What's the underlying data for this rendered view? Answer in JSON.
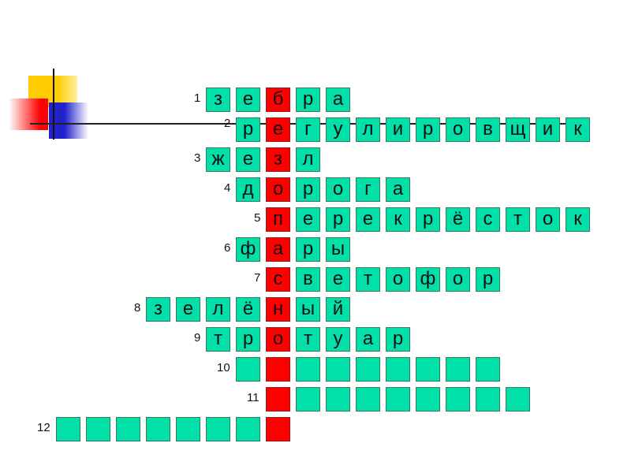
{
  "colors": {
    "cell": "#00e0a8",
    "key_cell": "#ff0000"
  },
  "rows": [
    {
      "number": "1",
      "start": -2,
      "length": 5,
      "letters": [
        "з",
        "е",
        "б",
        "р",
        "а"
      ]
    },
    {
      "number": "2",
      "start": -1,
      "length": 12,
      "letters": [
        "р",
        "е",
        "г",
        "у",
        "л",
        "и",
        "р",
        "о",
        "в",
        "щ",
        "и",
        "к"
      ]
    },
    {
      "number": "3",
      "start": -2,
      "length": 4,
      "letters": [
        "ж",
        "е",
        "з",
        "л"
      ]
    },
    {
      "number": "4",
      "start": -1,
      "length": 6,
      "letters": [
        "д",
        "о",
        "р",
        "о",
        "г",
        "а"
      ]
    },
    {
      "number": "5",
      "start": 0,
      "length": 11,
      "letters": [
        "п",
        "е",
        "р",
        "е",
        "к",
        "р",
        "ё",
        "с",
        "т",
        "о",
        "к"
      ]
    },
    {
      "number": "6",
      "start": -1,
      "length": 4,
      "letters": [
        "ф",
        "а",
        "р",
        "ы"
      ]
    },
    {
      "number": "7",
      "start": 0,
      "length": 8,
      "letters": [
        "с",
        "в",
        "е",
        "т",
        "о",
        "ф",
        "о",
        "р"
      ]
    },
    {
      "number": "8",
      "start": -4,
      "length": 7,
      "letters": [
        "з",
        "е",
        "л",
        "ё",
        "н",
        "ы",
        "й"
      ]
    },
    {
      "number": "9",
      "start": -2,
      "length": 7,
      "letters": [
        "т",
        "р",
        "о",
        "т",
        "у",
        "а",
        "р"
      ]
    },
    {
      "number": "10",
      "start": -1,
      "length": 9,
      "letters": []
    },
    {
      "number": "11",
      "start": 0,
      "length": 9,
      "letters": []
    },
    {
      "number": "12",
      "start": -7,
      "length": 8,
      "letters": []
    }
  ]
}
